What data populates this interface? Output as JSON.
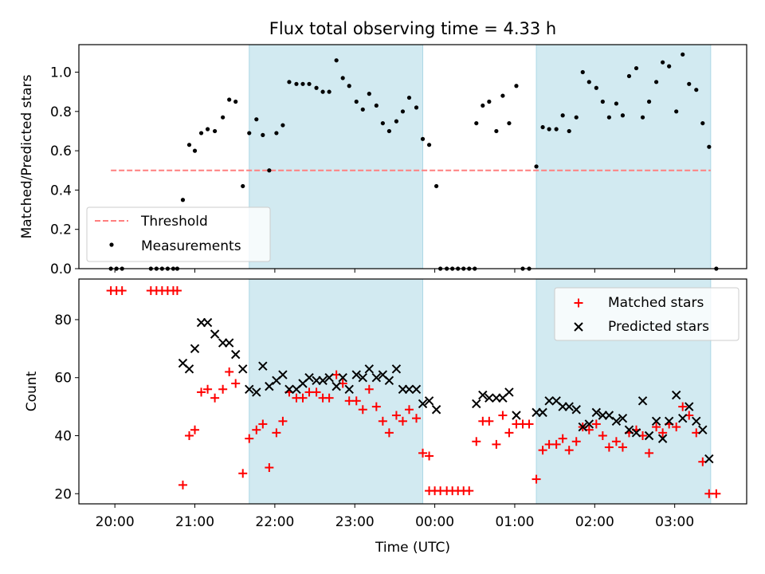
{
  "figure": {
    "title": "Flux total observing time = 4.33 h",
    "xlabel": "Time (UTC)",
    "xticks": [
      "20:00",
      "21:00",
      "22:00",
      "23:00",
      "00:00",
      "01:00",
      "02:00",
      "03:00"
    ],
    "colors": {
      "shade": "#add8e6",
      "threshold": "#ff7f7f",
      "measurements": "#000000",
      "matched": "#ff0000",
      "predicted": "#000000"
    }
  },
  "chart_data": [
    {
      "type": "scatter",
      "ylabel": "Matched/Predicted stars",
      "xlim": [
        19.55,
        27.9
      ],
      "ylim": [
        0.0,
        1.14
      ],
      "yticks": [
        "0.0",
        "0.2",
        "0.4",
        "0.6",
        "0.8",
        "1.0"
      ],
      "shaded_intervals": [
        [
          21.68,
          23.85
        ],
        [
          25.27,
          27.45
        ]
      ],
      "threshold": {
        "name": "Threshold",
        "y": 0.5,
        "x_range": [
          19.95,
          27.45
        ]
      },
      "legend": {
        "position": "lower-left",
        "entries": [
          "Threshold",
          "Measurements"
        ]
      },
      "series": [
        {
          "name": "Measurements",
          "points": [
            [
              19.95,
              0.0
            ],
            [
              20.02,
              0.0
            ],
            [
              20.09,
              0.0
            ],
            [
              20.45,
              0.0
            ],
            [
              20.52,
              0.0
            ],
            [
              20.59,
              0.0
            ],
            [
              20.66,
              0.0
            ],
            [
              20.73,
              0.0
            ],
            [
              20.78,
              0.0
            ],
            [
              20.85,
              0.35
            ],
            [
              20.93,
              0.63
            ],
            [
              21.0,
              0.6
            ],
            [
              21.08,
              0.69
            ],
            [
              21.16,
              0.71
            ],
            [
              21.25,
              0.7
            ],
            [
              21.35,
              0.77
            ],
            [
              21.43,
              0.86
            ],
            [
              21.51,
              0.85
            ],
            [
              21.6,
              0.42
            ],
            [
              21.68,
              0.69
            ],
            [
              21.77,
              0.76
            ],
            [
              21.85,
              0.68
            ],
            [
              21.93,
              0.5
            ],
            [
              22.02,
              0.69
            ],
            [
              22.1,
              0.73
            ],
            [
              22.18,
              0.95
            ],
            [
              22.27,
              0.94
            ],
            [
              22.35,
              0.94
            ],
            [
              22.43,
              0.94
            ],
            [
              22.52,
              0.92
            ],
            [
              22.6,
              0.9
            ],
            [
              22.68,
              0.9
            ],
            [
              22.77,
              1.06
            ],
            [
              22.85,
              0.97
            ],
            [
              22.93,
              0.93
            ],
            [
              23.02,
              0.85
            ],
            [
              23.1,
              0.81
            ],
            [
              23.18,
              0.89
            ],
            [
              23.27,
              0.83
            ],
            [
              23.35,
              0.74
            ],
            [
              23.43,
              0.7
            ],
            [
              23.52,
              0.75
            ],
            [
              23.6,
              0.8
            ],
            [
              23.68,
              0.87
            ],
            [
              23.77,
              0.82
            ],
            [
              23.85,
              0.66
            ],
            [
              23.93,
              0.63
            ],
            [
              24.02,
              0.42
            ],
            [
              24.07,
              0.0
            ],
            [
              24.15,
              0.0
            ],
            [
              24.22,
              0.0
            ],
            [
              24.29,
              0.0
            ],
            [
              24.36,
              0.0
            ],
            [
              24.43,
              0.0
            ],
            [
              24.5,
              0.0
            ],
            [
              24.52,
              0.74
            ],
            [
              24.6,
              0.83
            ],
            [
              24.68,
              0.85
            ],
            [
              24.77,
              0.7
            ],
            [
              24.85,
              0.88
            ],
            [
              24.93,
              0.74
            ],
            [
              25.02,
              0.93
            ],
            [
              25.1,
              0.0
            ],
            [
              25.18,
              0.0
            ],
            [
              25.27,
              0.52
            ],
            [
              25.35,
              0.72
            ],
            [
              25.43,
              0.71
            ],
            [
              25.52,
              0.71
            ],
            [
              25.6,
              0.78
            ],
            [
              25.68,
              0.7
            ],
            [
              25.77,
              0.77
            ],
            [
              25.85,
              1.0
            ],
            [
              25.93,
              0.95
            ],
            [
              26.02,
              0.92
            ],
            [
              26.1,
              0.85
            ],
            [
              26.18,
              0.77
            ],
            [
              26.27,
              0.84
            ],
            [
              26.35,
              0.78
            ],
            [
              26.43,
              0.98
            ],
            [
              26.52,
              1.02
            ],
            [
              26.6,
              0.77
            ],
            [
              26.68,
              0.85
            ],
            [
              26.77,
              0.95
            ],
            [
              26.85,
              1.05
            ],
            [
              26.93,
              1.03
            ],
            [
              27.02,
              0.8
            ],
            [
              27.1,
              1.09
            ],
            [
              27.18,
              0.94
            ],
            [
              27.27,
              0.91
            ],
            [
              27.35,
              0.74
            ],
            [
              27.43,
              0.62
            ],
            [
              27.52,
              0.0
            ]
          ]
        }
      ]
    },
    {
      "type": "scatter",
      "ylabel": "Count",
      "xlim": [
        19.55,
        27.9
      ],
      "ylim": [
        16.5,
        94
      ],
      "yticks": [
        "20",
        "40",
        "60",
        "80"
      ],
      "shaded_intervals": [
        [
          21.68,
          23.85
        ],
        [
          25.27,
          27.45
        ]
      ],
      "legend": {
        "position": "upper-right",
        "entries": [
          "Matched stars",
          "Predicted stars"
        ]
      },
      "series": [
        {
          "name": "Matched stars",
          "marker": "+",
          "points": [
            [
              19.95,
              90
            ],
            [
              20.02,
              90
            ],
            [
              20.09,
              90
            ],
            [
              20.45,
              90
            ],
            [
              20.52,
              90
            ],
            [
              20.59,
              90
            ],
            [
              20.66,
              90
            ],
            [
              20.73,
              90
            ],
            [
              20.78,
              90
            ],
            [
              20.85,
              23
            ],
            [
              20.93,
              40
            ],
            [
              21.0,
              42
            ],
            [
              21.08,
              55
            ],
            [
              21.16,
              56
            ],
            [
              21.25,
              53
            ],
            [
              21.35,
              56
            ],
            [
              21.43,
              62
            ],
            [
              21.51,
              58
            ],
            [
              21.6,
              27
            ],
            [
              21.68,
              39
            ],
            [
              21.77,
              42
            ],
            [
              21.85,
              44
            ],
            [
              21.93,
              29
            ],
            [
              22.02,
              41
            ],
            [
              22.1,
              45
            ],
            [
              22.18,
              55
            ],
            [
              22.27,
              53
            ],
            [
              22.35,
              53
            ],
            [
              22.43,
              55
            ],
            [
              22.52,
              55
            ],
            [
              22.6,
              53
            ],
            [
              22.68,
              53
            ],
            [
              22.77,
              61
            ],
            [
              22.85,
              58
            ],
            [
              22.93,
              52
            ],
            [
              23.02,
              52
            ],
            [
              23.1,
              49
            ],
            [
              23.18,
              56
            ],
            [
              23.27,
              50
            ],
            [
              23.35,
              45
            ],
            [
              23.43,
              41
            ],
            [
              23.52,
              47
            ],
            [
              23.6,
              45
            ],
            [
              23.68,
              49
            ],
            [
              23.77,
              46
            ],
            [
              23.85,
              34
            ],
            [
              23.93,
              33
            ],
            [
              23.93,
              21
            ],
            [
              24.0,
              21
            ],
            [
              24.07,
              21
            ],
            [
              24.15,
              21
            ],
            [
              24.22,
              21
            ],
            [
              24.29,
              21
            ],
            [
              24.36,
              21
            ],
            [
              24.43,
              21
            ],
            [
              24.52,
              38
            ],
            [
              24.6,
              45
            ],
            [
              24.68,
              45
            ],
            [
              24.77,
              37
            ],
            [
              24.85,
              47
            ],
            [
              24.93,
              41
            ],
            [
              25.02,
              44
            ],
            [
              25.1,
              44
            ],
            [
              25.18,
              44
            ],
            [
              25.27,
              25
            ],
            [
              25.35,
              35
            ],
            [
              25.43,
              37
            ],
            [
              25.52,
              37
            ],
            [
              25.6,
              39
            ],
            [
              25.68,
              35
            ],
            [
              25.77,
              38
            ],
            [
              25.85,
              43
            ],
            [
              25.93,
              42
            ],
            [
              26.02,
              44
            ],
            [
              26.1,
              40
            ],
            [
              26.18,
              36
            ],
            [
              26.27,
              38
            ],
            [
              26.35,
              36
            ],
            [
              26.43,
              41
            ],
            [
              26.52,
              42
            ],
            [
              26.6,
              40
            ],
            [
              26.68,
              34
            ],
            [
              26.77,
              43
            ],
            [
              26.85,
              41
            ],
            [
              26.93,
              44
            ],
            [
              27.02,
              43
            ],
            [
              27.1,
              50
            ],
            [
              27.18,
              47
            ],
            [
              27.27,
              41
            ],
            [
              27.35,
              31
            ],
            [
              27.43,
              20
            ],
            [
              27.52,
              20
            ]
          ]
        },
        {
          "name": "Predicted stars",
          "marker": "x",
          "points": [
            [
              20.85,
              65
            ],
            [
              20.93,
              63
            ],
            [
              21.0,
              70
            ],
            [
              21.08,
              79
            ],
            [
              21.16,
              79
            ],
            [
              21.25,
              75
            ],
            [
              21.35,
              72
            ],
            [
              21.43,
              72
            ],
            [
              21.51,
              68
            ],
            [
              21.6,
              63
            ],
            [
              21.68,
              56
            ],
            [
              21.77,
              55
            ],
            [
              21.85,
              64
            ],
            [
              21.93,
              57
            ],
            [
              22.02,
              59
            ],
            [
              22.1,
              61
            ],
            [
              22.18,
              56
            ],
            [
              22.27,
              56
            ],
            [
              22.35,
              58
            ],
            [
              22.43,
              60
            ],
            [
              22.52,
              59
            ],
            [
              22.6,
              59
            ],
            [
              22.68,
              60
            ],
            [
              22.77,
              57
            ],
            [
              22.85,
              60
            ],
            [
              22.93,
              56
            ],
            [
              23.02,
              61
            ],
            [
              23.1,
              60
            ],
            [
              23.18,
              63
            ],
            [
              23.27,
              60
            ],
            [
              23.35,
              61
            ],
            [
              23.43,
              59
            ],
            [
              23.52,
              63
            ],
            [
              23.6,
              56
            ],
            [
              23.68,
              56
            ],
            [
              23.77,
              56
            ],
            [
              23.85,
              51
            ],
            [
              23.93,
              52
            ],
            [
              24.02,
              49
            ],
            [
              24.52,
              51
            ],
            [
              24.6,
              54
            ],
            [
              24.68,
              53
            ],
            [
              24.77,
              53
            ],
            [
              24.85,
              53
            ],
            [
              24.93,
              55
            ],
            [
              25.02,
              47
            ],
            [
              25.27,
              48
            ],
            [
              25.35,
              48
            ],
            [
              25.43,
              52
            ],
            [
              25.52,
              52
            ],
            [
              25.6,
              50
            ],
            [
              25.68,
              50
            ],
            [
              25.77,
              49
            ],
            [
              25.85,
              43
            ],
            [
              25.93,
              44
            ],
            [
              26.02,
              48
            ],
            [
              26.1,
              47
            ],
            [
              26.18,
              47
            ],
            [
              26.27,
              45
            ],
            [
              26.35,
              46
            ],
            [
              26.43,
              42
            ],
            [
              26.52,
              41
            ],
            [
              26.6,
              52
            ],
            [
              26.68,
              40
            ],
            [
              26.77,
              45
            ],
            [
              26.85,
              39
            ],
            [
              26.93,
              45
            ],
            [
              27.02,
              54
            ],
            [
              27.1,
              46
            ],
            [
              27.18,
              50
            ],
            [
              27.27,
              45
            ],
            [
              27.35,
              42
            ],
            [
              27.43,
              32
            ]
          ]
        }
      ]
    }
  ]
}
